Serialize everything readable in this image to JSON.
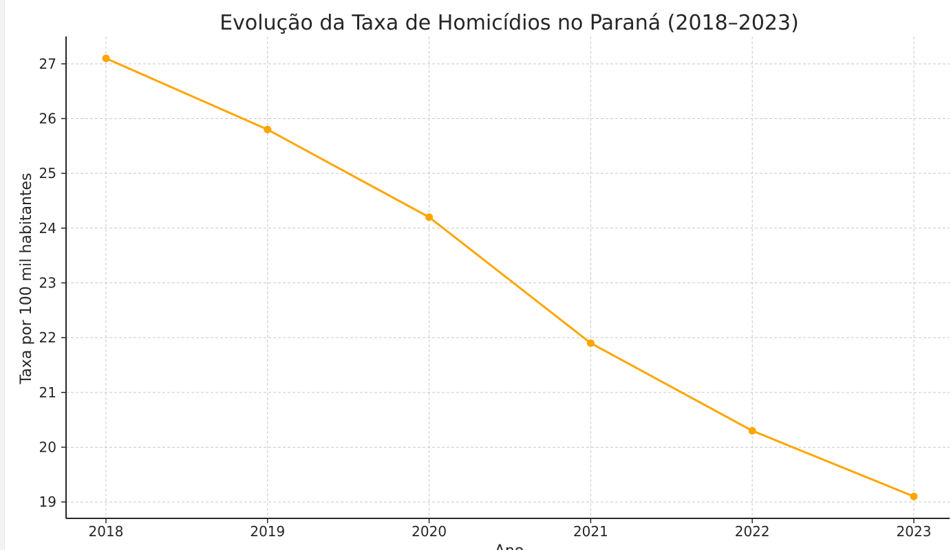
{
  "chart_data": {
    "type": "line",
    "title": "Evolução da Taxa de Homicídios no Paraná (2018–2023)",
    "xlabel": "Ano",
    "ylabel": "Taxa por 100 mil habitantes",
    "x": [
      "2018",
      "2019",
      "2020",
      "2021",
      "2022",
      "2023"
    ],
    "series": [
      {
        "values": [
          27.1,
          25.8,
          24.2,
          21.9,
          20.3,
          19.1
        ],
        "color": "#FFA500"
      }
    ],
    "yticks": [
      19,
      20,
      21,
      22,
      23,
      24,
      25,
      26,
      27
    ],
    "ylim": [
      18.7,
      27.5
    ],
    "grid": true,
    "marker": "circle"
  },
  "colors": {
    "line": "#FFA500",
    "text": "#262626",
    "grid": "#c8c8c8"
  }
}
